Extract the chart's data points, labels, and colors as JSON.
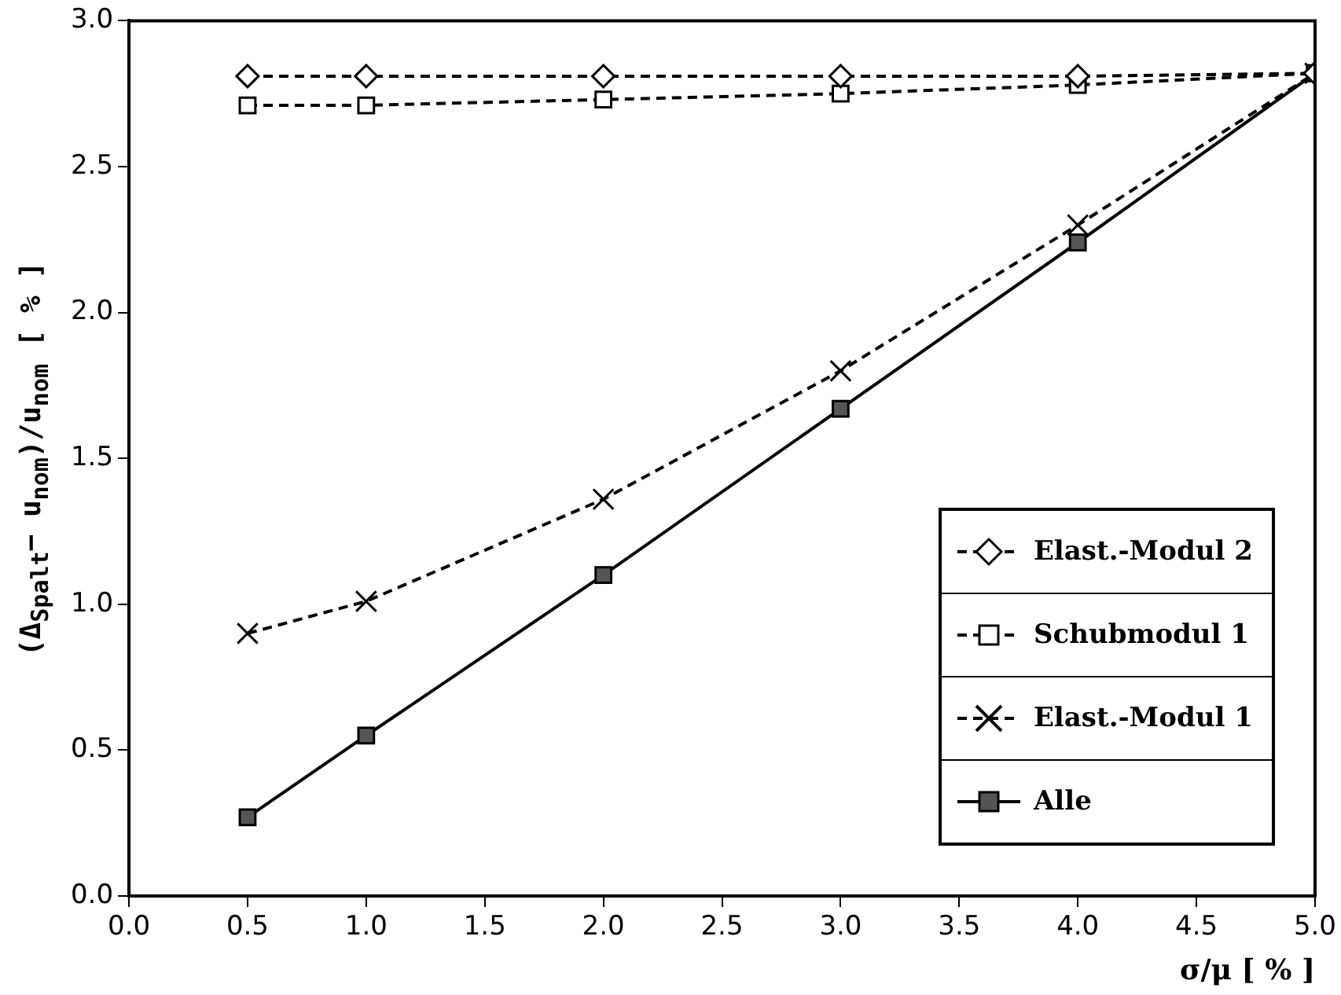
{
  "chart_data": {
    "type": "line",
    "xlabel": "σ/μ [ % ]",
    "ylabel": "(Δ$_{Spalt}$− u$_{nom}$)/u$_{nom}$ [ % ]",
    "x": [
      0.5,
      1.0,
      2.0,
      3.0,
      4.0,
      5.0
    ],
    "xlim": [
      0,
      5
    ],
    "xticks": [
      {
        "value": 0,
        "label": "0.0"
      },
      {
        "value": 0.5,
        "label": "0.5"
      },
      {
        "value": 1,
        "label": "1.0"
      },
      {
        "value": 1.5,
        "label": "1.5"
      },
      {
        "value": 2,
        "label": "2.0"
      },
      {
        "value": 2.5,
        "label": "2.5"
      },
      {
        "value": 3,
        "label": "3.0"
      },
      {
        "value": 3.5,
        "label": "3.5"
      },
      {
        "value": 4,
        "label": "4.0"
      },
      {
        "value": 4.5,
        "label": "4.5"
      },
      {
        "value": 5,
        "label": "5.0"
      }
    ],
    "ylim": [
      0,
      3
    ],
    "yticks": [
      {
        "value": 0,
        "label": "0.0"
      },
      {
        "value": 0.5,
        "label": "0.5"
      },
      {
        "value": 1,
        "label": "1.0"
      },
      {
        "value": 1.5,
        "label": "1.5"
      },
      {
        "value": 2,
        "label": "2.0"
      },
      {
        "value": 2.5,
        "label": "2.5"
      },
      {
        "value": 3,
        "label": "3.0"
      }
    ],
    "grid": false,
    "legend": "bottom right",
    "series": [
      {
        "name": "Elast.-Modul 2",
        "color": "#000000",
        "marker": "diamond",
        "line_style": "dashed",
        "values": [
          2.81,
          2.81,
          2.81,
          2.81,
          2.81,
          2.82
        ]
      },
      {
        "name": "Schubmodul 1",
        "color": "#000000",
        "marker": "square",
        "line_style": "dashed",
        "values": [
          2.71,
          2.71,
          2.73,
          2.75,
          2.78,
          2.82
        ]
      },
      {
        "name": "Elast.-Modul 1",
        "color": "#000000",
        "marker": "cross",
        "line_style": "dashed",
        "values": [
          0.9,
          1.01,
          1.36,
          1.8,
          2.3,
          2.82
        ]
      },
      {
        "name": "Alle",
        "color": "#000000",
        "marker": "square",
        "line_style": "solid",
        "values": [
          0.27,
          0.55,
          1.1,
          1.67,
          2.24,
          2.82
        ]
      }
    ]
  }
}
